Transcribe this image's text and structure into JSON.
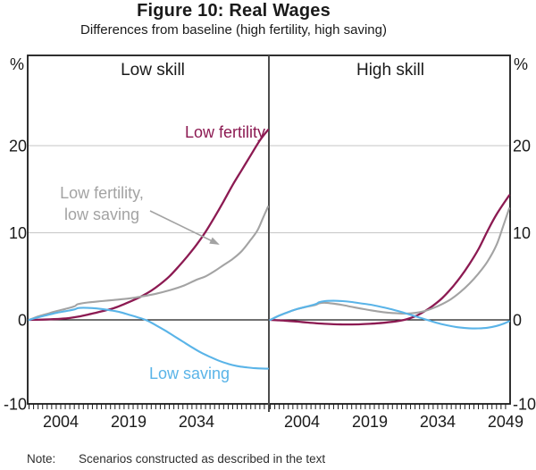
{
  "title": "Figure 10: Real Wages",
  "subtitle": "Differences from baseline (high fertility, high saving)",
  "note": {
    "label": "Note:",
    "text": "Scenarios constructed as described in the text"
  },
  "axis_units": {
    "left": "%",
    "right": "%"
  },
  "labels": {
    "low_fertility": "Low fertility",
    "low_fertility_low_saving_line1": "Low fertility,",
    "low_fertility_low_saving_line2": "low saving",
    "low_saving": "Low saving"
  },
  "chart_data": {
    "type": "line",
    "unit": "%",
    "xlim": [
      1996.7,
      2050
    ],
    "ylim": [
      -10,
      30
    ],
    "y_ticks": [
      {
        "value": 20,
        "label": "20"
      },
      {
        "value": 10,
        "label": "10"
      },
      {
        "value": 0,
        "label": "0"
      },
      {
        "value": -10,
        "label": "-10"
      }
    ],
    "y_gridlines": [
      20,
      10
    ],
    "zero_line": 0,
    "minor_tick_years": {
      "start": 1997,
      "end": 2049,
      "step": 1
    },
    "legend_position": "annotated-inline",
    "colors": {
      "low_fertility": "#8c1a52",
      "low_fertility_low_saving": "#a3a3a3",
      "low_saving": "#5ab4e8",
      "gridline": "#c6c6c6",
      "axis": "#1a1a1a",
      "divider": "#4d4d4d"
    },
    "panels": [
      {
        "title": "Low skill",
        "x_ticks": [
          {
            "year": 2004,
            "label": "2004"
          },
          {
            "year": 2019,
            "label": "2019"
          },
          {
            "year": 2034,
            "label": "2034"
          }
        ],
        "series": [
          {
            "key": "low_fertility",
            "name": "Low fertility",
            "points": [
              [
                1997,
                0
              ],
              [
                2000,
                0.03
              ],
              [
                2002,
                0.07
              ],
              [
                2004,
                0.12
              ],
              [
                2006,
                0.22
              ],
              [
                2008,
                0.38
              ],
              [
                2010,
                0.6
              ],
              [
                2012,
                0.85
              ],
              [
                2014,
                1.1
              ],
              [
                2016,
                1.4
              ],
              [
                2018,
                1.8
              ],
              [
                2020,
                2.25
              ],
              [
                2022,
                2.75
              ],
              [
                2024,
                3.35
              ],
              [
                2026,
                4.1
              ],
              [
                2028,
                5
              ],
              [
                2030,
                6.1
              ],
              [
                2032,
                7.3
              ],
              [
                2034,
                8.6
              ],
              [
                2036,
                10.1
              ],
              [
                2038,
                11.8
              ],
              [
                2040,
                13.6
              ],
              [
                2042,
                15.5
              ],
              [
                2044,
                17.2
              ],
              [
                2046,
                18.9
              ],
              [
                2048,
                20.6
              ],
              [
                2049.8,
                21.8
              ]
            ]
          },
          {
            "key": "low_fertility_low_saving",
            "name": "Low fertility, low saving",
            "points": [
              [
                1997,
                0
              ],
              [
                1999,
                0.4
              ],
              [
                2001,
                0.7
              ],
              [
                2003,
                1
              ],
              [
                2005,
                1.25
              ],
              [
                2007,
                1.55
              ],
              [
                2007.8,
                1.8
              ],
              [
                2010,
                2
              ],
              [
                2013,
                2.15
              ],
              [
                2016,
                2.3
              ],
              [
                2019,
                2.45
              ],
              [
                2022,
                2.7
              ],
              [
                2025,
                3
              ],
              [
                2028,
                3.4
              ],
              [
                2031,
                3.9
              ],
              [
                2034,
                4.6
              ],
              [
                2036,
                5
              ],
              [
                2038,
                5.6
              ],
              [
                2040,
                6.3
              ],
              [
                2042,
                7
              ],
              [
                2044,
                7.9
              ],
              [
                2046,
                9.2
              ],
              [
                2047.5,
                10.3
              ],
              [
                2048.7,
                11.7
              ],
              [
                2049.8,
                13
              ]
            ]
          },
          {
            "key": "low_saving",
            "name": "Low saving",
            "points": [
              [
                1997,
                0
              ],
              [
                1999,
                0.3
              ],
              [
                2001,
                0.55
              ],
              [
                2003,
                0.8
              ],
              [
                2005,
                1
              ],
              [
                2007,
                1.2
              ],
              [
                2007.8,
                1.35
              ],
              [
                2009,
                1.4
              ],
              [
                2011,
                1.35
              ],
              [
                2013,
                1.25
              ],
              [
                2015,
                1.1
              ],
              [
                2017,
                0.9
              ],
              [
                2019,
                0.6
              ],
              [
                2021,
                0.3
              ],
              [
                2023,
                -0.05
              ],
              [
                2025,
                -0.6
              ],
              [
                2027,
                -1.2
              ],
              [
                2029,
                -1.85
              ],
              [
                2031,
                -2.5
              ],
              [
                2033,
                -3.15
              ],
              [
                2035,
                -3.75
              ],
              [
                2037,
                -4.25
              ],
              [
                2039,
                -4.7
              ],
              [
                2041,
                -5.05
              ],
              [
                2043,
                -5.3
              ],
              [
                2045,
                -5.45
              ],
              [
                2047,
                -5.55
              ],
              [
                2049.8,
                -5.6
              ]
            ]
          }
        ]
      },
      {
        "title": "High skill",
        "x_ticks": [
          {
            "year": 2004,
            "label": "2004"
          },
          {
            "year": 2019,
            "label": "2019"
          },
          {
            "year": 2034,
            "label": "2034"
          },
          {
            "year": 2049,
            "label": "2049"
          }
        ],
        "series": [
          {
            "key": "low_fertility",
            "name": "Low fertility",
            "points": [
              [
                1997,
                0
              ],
              [
                1999,
                -0.05
              ],
              [
                2001,
                -0.12
              ],
              [
                2003,
                -0.2
              ],
              [
                2005,
                -0.3
              ],
              [
                2007,
                -0.38
              ],
              [
                2009,
                -0.45
              ],
              [
                2011,
                -0.5
              ],
              [
                2013,
                -0.52
              ],
              [
                2015,
                -0.52
              ],
              [
                2017,
                -0.5
              ],
              [
                2019,
                -0.45
              ],
              [
                2021,
                -0.38
              ],
              [
                2023,
                -0.28
              ],
              [
                2025,
                -0.15
              ],
              [
                2027,
                0.05
              ],
              [
                2029,
                0.4
              ],
              [
                2031,
                0.95
              ],
              [
                2033,
                1.65
              ],
              [
                2035,
                2.5
              ],
              [
                2037,
                3.6
              ],
              [
                2039,
                4.9
              ],
              [
                2041,
                6.4
              ],
              [
                2043,
                8.1
              ],
              [
                2045,
                10.2
              ],
              [
                2047,
                12.1
              ],
              [
                2049.8,
                14.3
              ]
            ]
          },
          {
            "key": "low_fertility_low_saving",
            "name": "Low fertility, low saving",
            "points": [
              [
                1997,
                0
              ],
              [
                1999,
                0.5
              ],
              [
                2001,
                0.9
              ],
              [
                2003,
                1.25
              ],
              [
                2005,
                1.5
              ],
              [
                2007,
                1.72
              ],
              [
                2007.8,
                1.9
              ],
              [
                2009,
                1.97
              ],
              [
                2011,
                1.87
              ],
              [
                2013,
                1.7
              ],
              [
                2015,
                1.5
              ],
              [
                2017,
                1.3
              ],
              [
                2019,
                1.12
              ],
              [
                2021,
                0.95
              ],
              [
                2023,
                0.83
              ],
              [
                2025,
                0.76
              ],
              [
                2027,
                0.73
              ],
              [
                2029,
                0.8
              ],
              [
                2031,
                1
              ],
              [
                2033,
                1.35
              ],
              [
                2035,
                1.82
              ],
              [
                2037,
                2.4
              ],
              [
                2039,
                3.2
              ],
              [
                2041,
                4.15
              ],
              [
                2043,
                5.3
              ],
              [
                2045,
                6.7
              ],
              [
                2047,
                8.6
              ],
              [
                2048.5,
                10.8
              ],
              [
                2049.8,
                12.8
              ]
            ]
          },
          {
            "key": "low_saving",
            "name": "Low saving",
            "points": [
              [
                1997,
                0
              ],
              [
                1999,
                0.5
              ],
              [
                2001,
                0.9
              ],
              [
                2003,
                1.25
              ],
              [
                2005,
                1.52
              ],
              [
                2007,
                1.8
              ],
              [
                2007.8,
                2.02
              ],
              [
                2009,
                2.15
              ],
              [
                2011,
                2.2
              ],
              [
                2013,
                2.15
              ],
              [
                2015,
                2.05
              ],
              [
                2017,
                1.9
              ],
              [
                2019,
                1.75
              ],
              [
                2021,
                1.55
              ],
              [
                2023,
                1.32
              ],
              [
                2025,
                1.05
              ],
              [
                2027,
                0.75
              ],
              [
                2029,
                0.42
              ],
              [
                2031,
                0.1
              ],
              [
                2033,
                -0.22
              ],
              [
                2035,
                -0.5
              ],
              [
                2037,
                -0.72
              ],
              [
                2039,
                -0.88
              ],
              [
                2041,
                -0.96
              ],
              [
                2043,
                -0.97
              ],
              [
                2045,
                -0.9
              ],
              [
                2047,
                -0.7
              ],
              [
                2048.5,
                -0.45
              ],
              [
                2049.8,
                -0.15
              ]
            ]
          }
        ]
      }
    ]
  }
}
